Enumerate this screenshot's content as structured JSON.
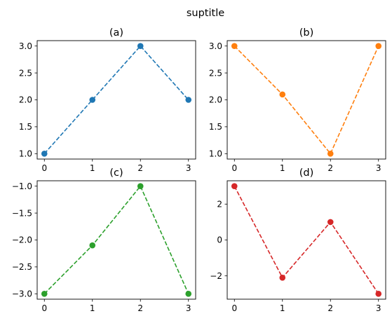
{
  "figure": {
    "suptitle": "suptitle"
  },
  "chart_data": [
    {
      "type": "line",
      "title": "(a)",
      "color": "#1f77b4",
      "x": [
        0,
        1,
        2,
        3
      ],
      "values": [
        1,
        2,
        3,
        2
      ],
      "xlim": [
        -0.15,
        3.15
      ],
      "ylim": [
        0.9,
        3.1
      ],
      "xticks": [
        0,
        1,
        2,
        3
      ],
      "yticks": [
        1.0,
        1.5,
        2.0,
        2.5,
        3.0
      ],
      "ytick_labels": [
        "1.0",
        "1.5",
        "2.0",
        "2.5",
        "3.0"
      ],
      "line_style": "dashed",
      "marker": "circle",
      "grid": false
    },
    {
      "type": "line",
      "title": "(b)",
      "color": "#ff7f0e",
      "x": [
        0,
        1,
        2,
        3
      ],
      "values": [
        3,
        2.1,
        1,
        3
      ],
      "xlim": [
        -0.15,
        3.15
      ],
      "ylim": [
        0.9,
        3.1
      ],
      "xticks": [
        0,
        1,
        2,
        3
      ],
      "yticks": [
        1.0,
        1.5,
        2.0,
        2.5,
        3.0
      ],
      "ytick_labels": [
        "1.0",
        "1.5",
        "2.0",
        "2.5",
        "3.0"
      ],
      "line_style": "dashed",
      "marker": "circle",
      "grid": false
    },
    {
      "type": "line",
      "title": "(c)",
      "color": "#2ca02c",
      "x": [
        0,
        1,
        2,
        3
      ],
      "values": [
        -3,
        -2.1,
        -1,
        -3
      ],
      "xlim": [
        -0.15,
        3.15
      ],
      "ylim": [
        -3.1,
        -0.9
      ],
      "xticks": [
        0,
        1,
        2,
        3
      ],
      "yticks": [
        -3.0,
        -2.5,
        -2.0,
        -1.5,
        -1.0
      ],
      "ytick_labels": [
        "−3.0",
        "−2.5",
        "−2.0",
        "−1.5",
        "−1.0"
      ],
      "line_style": "dashed",
      "marker": "circle",
      "grid": false
    },
    {
      "type": "line",
      "title": "(d)",
      "color": "#d62728",
      "x": [
        0,
        1,
        2,
        3
      ],
      "values": [
        3,
        -2.1,
        1,
        -3
      ],
      "xlim": [
        -0.15,
        3.15
      ],
      "ylim": [
        -3.3,
        3.3
      ],
      "xticks": [
        0,
        1,
        2,
        3
      ],
      "yticks": [
        -2,
        0,
        2
      ],
      "ytick_labels": [
        "−2",
        "0",
        "2"
      ],
      "line_style": "dashed",
      "marker": "circle",
      "grid": false
    }
  ]
}
